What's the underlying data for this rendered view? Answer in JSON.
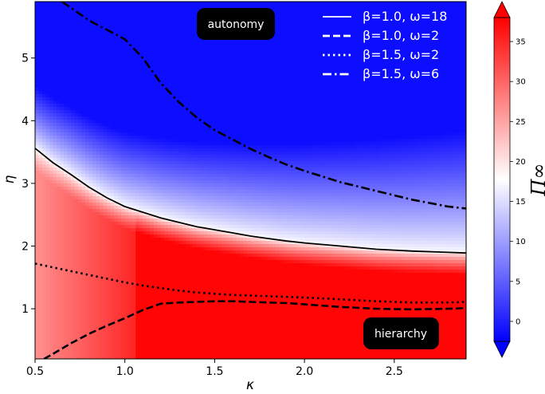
{
  "chart_data": {
    "type": "heatmap",
    "xlabel": "κ",
    "ylabel": "η",
    "colorbar_label": "Π∞",
    "xlim": [
      0.5,
      2.9
    ],
    "ylim": [
      0.2,
      5.9
    ],
    "xticks": [
      "0.5",
      "1.0",
      "1.5",
      "2.0",
      "2.5"
    ],
    "yticks": [
      "1",
      "2",
      "3",
      "4",
      "5"
    ],
    "colorbar": {
      "cmap": "bwr",
      "range": [
        -2.5,
        38
      ],
      "ticks": [
        "0",
        "5",
        "10",
        "15",
        "20",
        "25",
        "30",
        "35"
      ],
      "extend": "both"
    },
    "annotations": [
      "autonomy",
      "hierarchy"
    ],
    "legend_position": "top-right",
    "series": [
      {
        "name": "β=1.0, ω=18",
        "style": "solid",
        "x": [
          0.5,
          0.6,
          0.7,
          0.8,
          0.9,
          1.0,
          1.1,
          1.2,
          1.3,
          1.4,
          1.5,
          1.6,
          1.7,
          1.8,
          1.9,
          2.0,
          2.2,
          2.4,
          2.6,
          2.8,
          2.9
        ],
        "y": [
          3.56,
          3.33,
          3.14,
          2.94,
          2.77,
          2.63,
          2.54,
          2.45,
          2.38,
          2.31,
          2.26,
          2.21,
          2.16,
          2.12,
          2.08,
          2.05,
          2.0,
          1.95,
          1.92,
          1.9,
          1.89
        ]
      },
      {
        "name": "β=1.0, ω=2",
        "style": "dashed",
        "x": [
          0.5,
          0.6,
          0.7,
          0.8,
          0.9,
          1.0,
          1.1,
          1.2,
          1.3,
          1.4,
          1.5,
          1.6,
          1.7,
          1.8,
          1.9,
          2.0,
          2.2,
          2.4,
          2.6,
          2.8,
          2.9
        ],
        "y": [
          0.12,
          0.28,
          0.45,
          0.6,
          0.73,
          0.85,
          0.98,
          1.08,
          1.1,
          1.11,
          1.12,
          1.12,
          1.11,
          1.1,
          1.09,
          1.07,
          1.03,
          1.0,
          0.99,
          1.0,
          1.01
        ]
      },
      {
        "name": "β=1.5, ω=2",
        "style": "dotted",
        "x": [
          0.5,
          0.6,
          0.7,
          0.8,
          0.9,
          1.0,
          1.1,
          1.2,
          1.3,
          1.4,
          1.5,
          1.6,
          1.7,
          1.8,
          1.9,
          2.0,
          2.2,
          2.4,
          2.6,
          2.8,
          2.9
        ],
        "y": [
          1.72,
          1.66,
          1.6,
          1.54,
          1.48,
          1.42,
          1.37,
          1.33,
          1.29,
          1.26,
          1.24,
          1.22,
          1.21,
          1.2,
          1.19,
          1.18,
          1.15,
          1.12,
          1.1,
          1.1,
          1.11
        ]
      },
      {
        "name": "β=1.5, ω=6",
        "style": "dashdot",
        "x": [
          0.65,
          0.8,
          0.9,
          1.0,
          1.1,
          1.2,
          1.3,
          1.4,
          1.5,
          1.6,
          1.7,
          1.8,
          1.9,
          2.0,
          2.2,
          2.4,
          2.6,
          2.8,
          2.9
        ],
        "y": [
          5.9,
          5.6,
          5.45,
          5.3,
          5.0,
          4.6,
          4.3,
          4.05,
          3.85,
          3.7,
          3.55,
          3.42,
          3.3,
          3.2,
          3.02,
          2.88,
          2.74,
          2.63,
          2.6
        ]
      }
    ]
  }
}
